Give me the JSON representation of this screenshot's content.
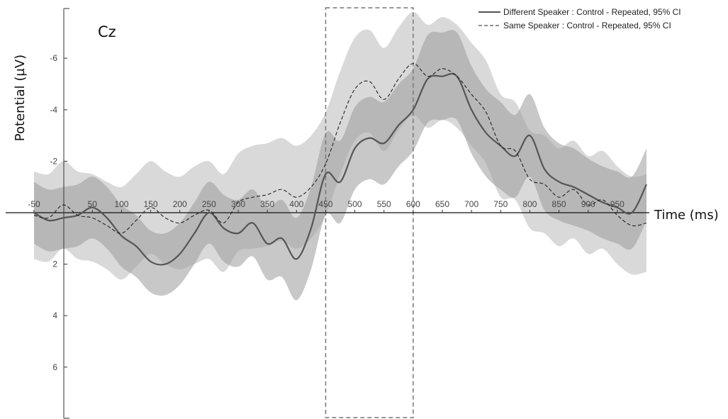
{
  "chart_data": {
    "type": "line",
    "title": "",
    "annotation": "Cz",
    "xlabel": "Time (ms)",
    "ylabel": "Potential (µV)",
    "xlim": [
      -50,
      1000
    ],
    "ylim": [
      -7.5,
      7.5
    ],
    "y_inverted": true,
    "grid": false,
    "legend_position": "top-right",
    "x_ticks": [
      -50,
      50,
      100,
      150,
      200,
      250,
      300,
      350,
      400,
      450,
      500,
      550,
      600,
      650,
      700,
      750,
      800,
      850,
      900,
      950
    ],
    "x_tick_labels": [
      "-50",
      "50",
      "100",
      "150",
      "200",
      "250",
      "300",
      "350",
      "400",
      "450",
      "500",
      "550",
      "600",
      "650",
      "700",
      "750",
      "800",
      "850",
      "900",
      "950"
    ],
    "y_ticks": [
      -6,
      -4,
      -2,
      2,
      4,
      6
    ],
    "y_tick_labels": [
      "-6",
      "-4",
      "-2",
      "2",
      "4",
      "6"
    ],
    "highlight_window": [
      450,
      600
    ],
    "series": [
      {
        "name": "Different Speaker : Control - Repeated, 95% CI",
        "style": "solid",
        "color": "#555555",
        "ci_color": "#9a9a9a",
        "x": [
          -50,
          -25,
          0,
          25,
          50,
          75,
          100,
          125,
          150,
          175,
          200,
          225,
          250,
          275,
          300,
          325,
          350,
          375,
          400,
          425,
          450,
          475,
          500,
          525,
          550,
          575,
          600,
          625,
          650,
          675,
          700,
          725,
          750,
          775,
          800,
          825,
          850,
          875,
          900,
          925,
          950,
          975,
          1000
        ],
        "y": [
          0,
          0.3,
          0.2,
          0.1,
          -0.2,
          0.2,
          0.9,
          1.3,
          1.9,
          2.0,
          1.6,
          0.8,
          0,
          0.6,
          0.8,
          0.4,
          1.2,
          1.0,
          1.8,
          0.6,
          -1.5,
          -1.2,
          -2.5,
          -2.9,
          -2.7,
          -3.4,
          -4.0,
          -5.2,
          -5.3,
          -5.3,
          -4.0,
          -3.1,
          -2.6,
          -2.2,
          -3.0,
          -1.7,
          -1.2,
          -1.0,
          -0.7,
          -0.4,
          -0.2,
          0,
          -1.1
        ],
        "ci_halfwidth": [
          1.2,
          1.2,
          1.2,
          1.2,
          1.2,
          1.2,
          1.2,
          1.2,
          1.2,
          1.2,
          1.2,
          1.2,
          1.2,
          1.3,
          1.3,
          1.3,
          1.4,
          1.5,
          1.6,
          1.6,
          1.6,
          1.6,
          1.6,
          1.6,
          1.6,
          1.6,
          1.6,
          1.7,
          1.7,
          1.7,
          1.7,
          1.7,
          1.7,
          1.6,
          1.6,
          1.6,
          1.5,
          1.5,
          1.4,
          1.4,
          1.4,
          1.4,
          1.4
        ]
      },
      {
        "name": "Same Speaker : Control - Repeated, 95% CI",
        "style": "dashed",
        "color": "#222222",
        "ci_color": "#d2d2d2",
        "x": [
          -50,
          -25,
          0,
          25,
          50,
          75,
          100,
          125,
          150,
          175,
          200,
          225,
          250,
          275,
          300,
          325,
          350,
          375,
          400,
          425,
          450,
          475,
          500,
          525,
          550,
          575,
          600,
          625,
          650,
          675,
          700,
          725,
          750,
          775,
          800,
          825,
          850,
          875,
          900,
          925,
          950,
          975,
          1000
        ],
        "y": [
          0.1,
          0.2,
          -0.3,
          0.1,
          0.2,
          0.5,
          0.8,
          0.3,
          -0.2,
          0.2,
          0.4,
          0.1,
          -0.1,
          0.4,
          -0.4,
          -0.6,
          -0.7,
          -0.9,
          -0.6,
          -1.0,
          -1.9,
          -3.5,
          -4.8,
          -5.1,
          -4.4,
          -5.2,
          -5.8,
          -5.3,
          -5.6,
          -5.3,
          -4.6,
          -3.9,
          -2.6,
          -2.4,
          -1.3,
          -1.1,
          -0.6,
          -0.9,
          -0.3,
          -0.5,
          0.1,
          0.5,
          0.4
        ],
        "ci_halfwidth": [
          1.7,
          1.7,
          1.7,
          1.7,
          1.7,
          1.7,
          1.8,
          1.8,
          1.8,
          1.8,
          1.8,
          1.9,
          1.9,
          1.9,
          1.9,
          2.0,
          2.0,
          2.0,
          2.0,
          2.0,
          2.0,
          2.0,
          2.0,
          2.0,
          2.0,
          2.0,
          2.0,
          2.0,
          2.0,
          2.0,
          2.0,
          2.0,
          2.0,
          1.9,
          1.9,
          1.9,
          1.9,
          1.9,
          1.9,
          1.9,
          1.9,
          1.9,
          1.9
        ]
      }
    ]
  }
}
